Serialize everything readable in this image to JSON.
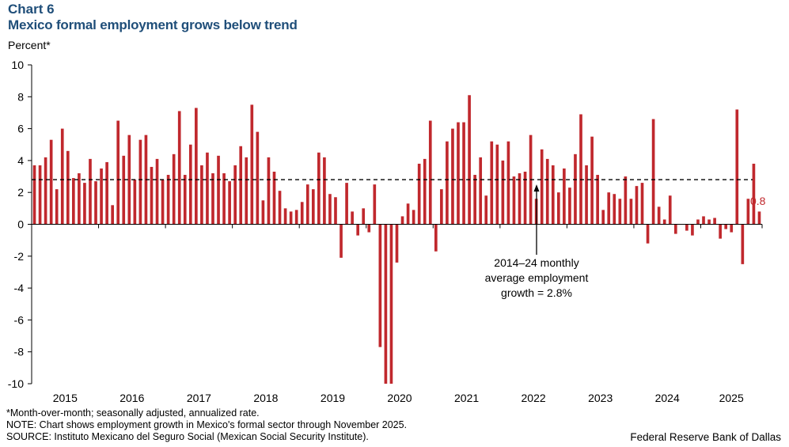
{
  "header": {
    "chart_number": "Chart 6",
    "title": "Mexico formal employment grows below trend",
    "unit_label": "Percent*"
  },
  "notes": {
    "line1": "*Month-over-month; seasonally adjusted, annualized rate.",
    "line2": "NOTE: Chart shows employment growth in Mexico's formal sector through November 2025.",
    "line3": "SOURCE: Instituto Mexicano del Seguro Social (Mexican Social Security Institute)."
  },
  "credit": "Federal Reserve Bank of Dallas",
  "colors": {
    "bar": "#c0282d",
    "axis": "#000000",
    "title": "#1f4e79"
  },
  "chart_data": {
    "type": "bar",
    "title": "Mexico formal employment grows below trend",
    "ylabel": "Percent*",
    "xlabel": "",
    "ylim": [
      -10,
      10
    ],
    "yticks": [
      "10",
      "8",
      "6",
      "4",
      "2",
      "0",
      "-2",
      "-4",
      "-6",
      "-8",
      "-10"
    ],
    "year_labels": [
      "2015",
      "2016",
      "2017",
      "2018",
      "2019",
      "2020",
      "2021",
      "2022",
      "2023",
      "2024",
      "2025"
    ],
    "series": [
      {
        "name": "Month-over-month annualized growth",
        "values": [
          3.7,
          3.7,
          4.2,
          5.3,
          2.2,
          6.0,
          4.6,
          2.9,
          3.2,
          2.6,
          4.1,
          2.7,
          3.5,
          3.9,
          1.2,
          6.5,
          4.3,
          5.6,
          2.8,
          5.3,
          5.6,
          3.6,
          4.1,
          2.8,
          3.1,
          4.4,
          7.1,
          3.1,
          5.0,
          7.3,
          3.7,
          4.5,
          3.2,
          4.3,
          3.2,
          2.7,
          3.7,
          4.9,
          4.2,
          7.5,
          5.8,
          1.5,
          4.2,
          3.3,
          2.1,
          1.0,
          0.8,
          0.9,
          1.4,
          2.5,
          2.2,
          4.5,
          4.2,
          1.9,
          1.7,
          -2.1,
          2.6,
          0.8,
          -0.7,
          1.0,
          -0.5,
          2.5,
          -7.7,
          -10.0,
          -10.0,
          -2.4,
          0.5,
          1.3,
          0.9,
          3.8,
          4.1,
          6.5,
          -1.7,
          2.2,
          5.2,
          6.0,
          6.4,
          6.4,
          8.1,
          3.1,
          4.2,
          1.8,
          5.2,
          5.0,
          4.0,
          5.2,
          3.0,
          3.2,
          3.3,
          5.6,
          1.6,
          4.7,
          4.1,
          3.7,
          2.0,
          3.5,
          2.3,
          4.4,
          6.9,
          3.7,
          5.5,
          3.1,
          0.9,
          2.0,
          1.9,
          1.6,
          3.0,
          1.6,
          2.4,
          2.6,
          -1.2,
          6.6,
          1.1,
          0.3,
          1.8,
          -0.6,
          0.0,
          -0.4,
          -0.7,
          0.3,
          0.5,
          0.3,
          0.4,
          -0.9,
          -0.3,
          -0.5,
          7.2,
          -2.5,
          1.6,
          3.8,
          0.8
        ]
      }
    ],
    "reference_line": {
      "value": 2.8,
      "style": "dashed"
    },
    "annotation": {
      "line1": "2014–24 monthly",
      "line2": "average employment",
      "line3": "growth = 2.8%"
    },
    "last_value_label": "0.8",
    "grid": false,
    "legend": "none"
  }
}
